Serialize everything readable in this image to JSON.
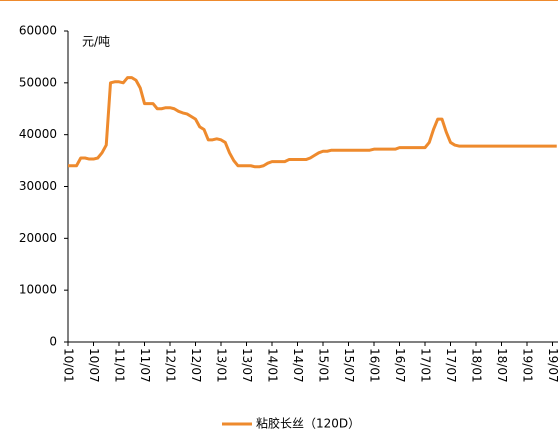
{
  "chart_data": {
    "type": "line",
    "y_label": "元/吨",
    "categories": [
      "10/01",
      null,
      null,
      null,
      null,
      null,
      "10/07",
      null,
      null,
      null,
      null,
      null,
      "11/01",
      null,
      null,
      null,
      null,
      null,
      "11/07",
      null,
      null,
      null,
      null,
      null,
      "12/01",
      null,
      null,
      null,
      null,
      null,
      "12/07",
      null,
      null,
      null,
      null,
      null,
      "13/01",
      null,
      null,
      null,
      null,
      null,
      "13/07",
      null,
      null,
      null,
      null,
      null,
      "14/01",
      null,
      null,
      null,
      null,
      null,
      "14/07",
      null,
      null,
      null,
      null,
      null,
      "15/01",
      null,
      null,
      null,
      null,
      null,
      "15/07",
      null,
      null,
      null,
      null,
      null,
      "16/01",
      null,
      null,
      null,
      null,
      null,
      "16/07",
      null,
      null,
      null,
      null,
      null,
      "17/01",
      null,
      null,
      null,
      null,
      null,
      "17/07",
      null,
      null,
      null,
      null,
      null,
      "18/01",
      null,
      null,
      null,
      null,
      null,
      "18/07",
      null,
      null,
      null,
      null,
      null,
      "19/01",
      null,
      null,
      null,
      null,
      null,
      "19/07",
      null
    ],
    "series": [
      {
        "name": "粘胶长丝（120D）",
        "color": "#ee8a2d",
        "values": [
          34000,
          34000,
          34000,
          35500,
          35500,
          35300,
          35300,
          35500,
          36500,
          38000,
          50000,
          50200,
          50200,
          50000,
          51000,
          51000,
          50500,
          49000,
          46000,
          46000,
          46000,
          45000,
          45000,
          45200,
          45200,
          45000,
          44500,
          44200,
          44000,
          43500,
          43000,
          41500,
          41000,
          39000,
          39000,
          39200,
          39000,
          38500,
          36500,
          35000,
          34000,
          34000,
          34000,
          34000,
          33800,
          33800,
          34000,
          34500,
          34800,
          34800,
          34800,
          34800,
          35200,
          35200,
          35200,
          35200,
          35200,
          35500,
          36000,
          36500,
          36800,
          36800,
          37000,
          37000,
          37000,
          37000,
          37000,
          37000,
          37000,
          37000,
          37000,
          37000,
          37200,
          37200,
          37200,
          37200,
          37200,
          37200,
          37500,
          37500,
          37500,
          37500,
          37500,
          37500,
          37500,
          38500,
          41000,
          43000,
          43000,
          40500,
          38500,
          38000,
          37800,
          37800,
          37800,
          37800,
          37800,
          37800,
          37800,
          37800,
          37800,
          37800,
          37800,
          37800,
          37800,
          37800,
          37800,
          37800,
          37800,
          37800,
          37800,
          37800,
          37800,
          37800,
          37800,
          37800
        ]
      }
    ],
    "ylim": [
      0,
      60000
    ],
    "yticks": [
      0,
      10000,
      20000,
      30000,
      40000,
      50000,
      60000
    ],
    "grid": false,
    "legend": "bottom"
  }
}
